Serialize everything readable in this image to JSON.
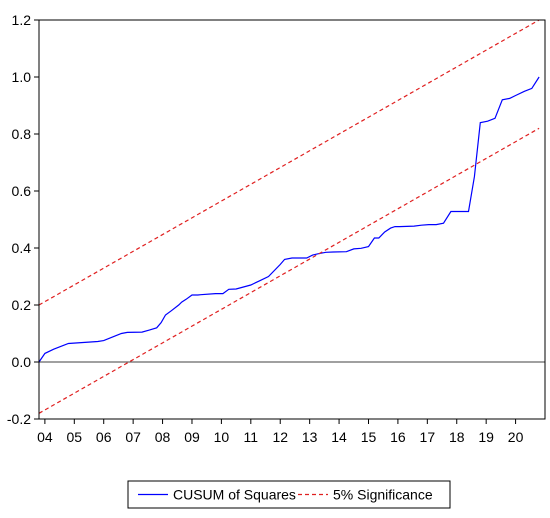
{
  "chart_data": {
    "type": "line",
    "title": "",
    "xlabel": "",
    "ylabel": "",
    "ylim": [
      -0.2,
      1.2
    ],
    "xlim": [
      2004.0,
      2021.2
    ],
    "x_ticks": [
      {
        "label": "04",
        "value": 2004.2
      },
      {
        "label": "05",
        "value": 2005.2
      },
      {
        "label": "06",
        "value": 2006.2
      },
      {
        "label": "07",
        "value": 2007.2
      },
      {
        "label": "08",
        "value": 2008.2
      },
      {
        "label": "09",
        "value": 2009.2
      },
      {
        "label": "10",
        "value": 2010.2
      },
      {
        "label": "11",
        "value": 2011.2
      },
      {
        "label": "12",
        "value": 2012.2
      },
      {
        "label": "13",
        "value": 2013.2
      },
      {
        "label": "14",
        "value": 2014.2
      },
      {
        "label": "15",
        "value": 2015.2
      },
      {
        "label": "16",
        "value": 2016.2
      },
      {
        "label": "17",
        "value": 2017.2
      },
      {
        "label": "18",
        "value": 2018.2
      },
      {
        "label": "19",
        "value": 2019.2
      },
      {
        "label": "20",
        "value": 2020.2
      }
    ],
    "y_ticks": [
      {
        "label": "-0.2",
        "value": -0.2
      },
      {
        "label": "0.0",
        "value": 0.0
      },
      {
        "label": "0.2",
        "value": 0.2
      },
      {
        "label": "0.4",
        "value": 0.4
      },
      {
        "label": "0.6",
        "value": 0.6
      },
      {
        "label": "0.8",
        "value": 0.8
      },
      {
        "label": "1.0",
        "value": 1.0
      },
      {
        "label": "1.2",
        "value": 1.2
      }
    ],
    "zero_line": true,
    "grid": false,
    "legend_position": "bottom",
    "series": [
      {
        "name": "CUSUM of Squares",
        "color": "#0000ff",
        "style": "solid",
        "x": [
          2004.0,
          2004.2,
          2004.5,
          2005.0,
          2006.0,
          2006.2,
          2006.6,
          2006.8,
          2007.0,
          2007.5,
          2007.75,
          2008.0,
          2008.15,
          2008.3,
          2008.5,
          2008.75,
          2008.85,
          2009.0,
          2009.2,
          2009.4,
          2009.5,
          2010.0,
          2010.25,
          2010.45,
          2010.7,
          2011.2,
          2011.5,
          2011.8,
          2012.2,
          2012.35,
          2012.6,
          2013.1,
          2013.3,
          2013.5,
          2013.75,
          2014.0,
          2014.45,
          2014.7,
          2014.95,
          2015.2,
          2015.4,
          2015.55,
          2015.75,
          2015.95,
          2016.1,
          2016.25,
          2016.75,
          2017.0,
          2017.25,
          2017.5,
          2017.75,
          2018.0,
          2018.25,
          2018.6,
          2018.8,
          2019.0,
          2019.25,
          2019.5,
          2019.75,
          2020.0,
          2020.2,
          2020.5,
          2020.75,
          2021.0
        ],
        "y": [
          0.0,
          0.03,
          0.045,
          0.065,
          0.072,
          0.075,
          0.092,
          0.1,
          0.104,
          0.105,
          0.112,
          0.12,
          0.138,
          0.165,
          0.18,
          0.2,
          0.21,
          0.22,
          0.235,
          0.235,
          0.236,
          0.24,
          0.24,
          0.255,
          0.256,
          0.27,
          0.285,
          0.3,
          0.342,
          0.36,
          0.365,
          0.365,
          0.375,
          0.38,
          0.385,
          0.386,
          0.387,
          0.397,
          0.399,
          0.405,
          0.435,
          0.435,
          0.456,
          0.47,
          0.475,
          0.475,
          0.477,
          0.48,
          0.482,
          0.482,
          0.487,
          0.528,
          0.528,
          0.528,
          0.65,
          0.84,
          0.845,
          0.855,
          0.92,
          0.925,
          0.935,
          0.95,
          0.96,
          1.0
        ]
      },
      {
        "name": "5% Significance",
        "color": "#e02020",
        "style": "dashed",
        "x": [
          2004.0,
          2021.0
        ],
        "y": [
          0.2,
          1.2
        ]
      },
      {
        "name": "",
        "color": "#e02020",
        "style": "dashed",
        "x": [
          2004.0,
          2021.0
        ],
        "y": [
          -0.18,
          0.82
        ]
      }
    ]
  }
}
